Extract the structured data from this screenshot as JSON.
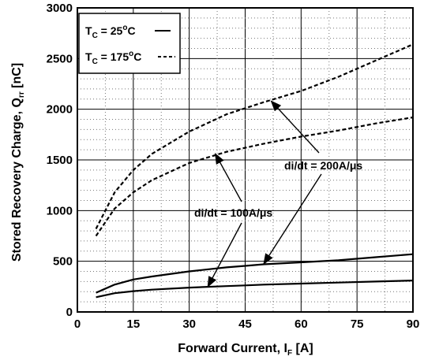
{
  "chart_data": {
    "type": "line",
    "xlabel": {
      "main": "Forward Current, I",
      "sub": "F",
      "tail": " [A]"
    },
    "ylabel": {
      "main": "Stored Recovery Charge, Q",
      "sub": "rr",
      "tail": " [nC]"
    },
    "xlim": [
      0,
      90
    ],
    "ylim": [
      0,
      3000
    ],
    "x_ticks": [
      "0",
      "15",
      "30",
      "45",
      "60",
      "75",
      "90"
    ],
    "y_ticks": [
      "0",
      "500",
      "1000",
      "1500",
      "2000",
      "2500",
      "3000"
    ],
    "x_tick_values": [
      0,
      15,
      30,
      45,
      60,
      75,
      90
    ],
    "y_tick_values": [
      0,
      500,
      1000,
      1500,
      2000,
      2500,
      3000
    ],
    "grid": true,
    "legend_position": "top-left",
    "legend": [
      {
        "prefix": "T",
        "sub": "C",
        "mid": " = 25",
        "sup": "o",
        "suffix": "C",
        "style": "solid"
      },
      {
        "prefix": "T",
        "sub": "C",
        "mid": " = 175",
        "sup": "o",
        "suffix": "C",
        "style": "dashed"
      }
    ],
    "annotations": {
      "di200": "di/dt = 200A/μs",
      "di100": "di/dt = 100A/μs"
    },
    "series": [
      {
        "style": "solid",
        "x": [
          5,
          10,
          15,
          20,
          30,
          40,
          45,
          50,
          60,
          70,
          80,
          90
        ],
        "values": [
          190,
          270,
          320,
          350,
          400,
          440,
          455,
          470,
          490,
          510,
          540,
          570
        ]
      },
      {
        "style": "solid",
        "x": [
          5,
          10,
          15,
          20,
          30,
          40,
          45,
          50,
          60,
          70,
          80,
          90
        ],
        "values": [
          145,
          185,
          205,
          220,
          240,
          255,
          262,
          270,
          280,
          290,
          300,
          310
        ]
      },
      {
        "style": "dashed",
        "x": [
          5,
          10,
          15,
          20,
          30,
          40,
          45,
          50,
          60,
          70,
          80,
          90
        ],
        "values": [
          820,
          1180,
          1400,
          1560,
          1780,
          1950,
          2010,
          2070,
          2180,
          2320,
          2480,
          2640
        ]
      },
      {
        "style": "dashed",
        "x": [
          5,
          10,
          15,
          20,
          30,
          40,
          45,
          50,
          60,
          70,
          80,
          90
        ],
        "values": [
          750,
          1020,
          1180,
          1300,
          1470,
          1580,
          1620,
          1660,
          1730,
          1790,
          1860,
          1920
        ]
      }
    ]
  }
}
